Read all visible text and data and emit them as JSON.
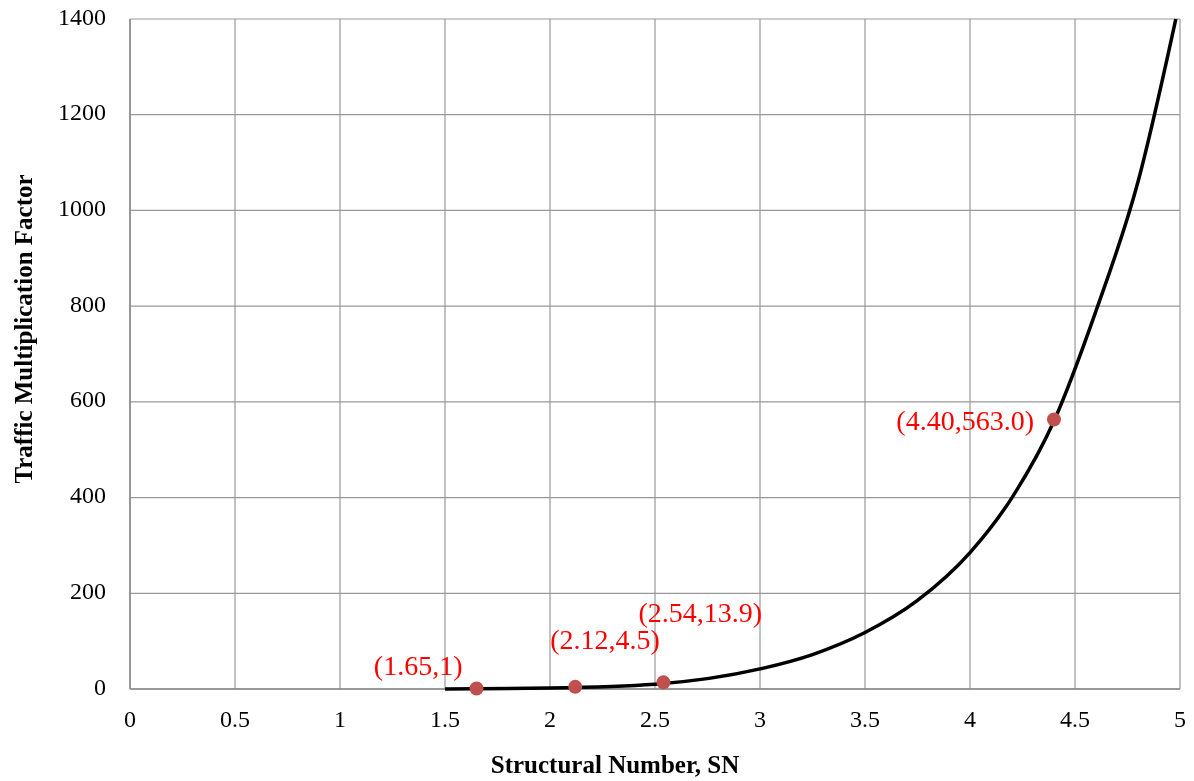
{
  "chart_data": {
    "type": "line",
    "xlabel": "Structural Number, SN",
    "ylabel": "Traffic Multiplication Factor",
    "xlim": [
      0,
      5
    ],
    "xticks": [
      0,
      0.5,
      1,
      1.5,
      2,
      2.5,
      3,
      3.5,
      4,
      4.5,
      5
    ],
    "ylim": [
      0,
      1400
    ],
    "yticks": [
      0,
      200,
      400,
      600,
      800,
      1000,
      1200,
      1400
    ],
    "grid": true,
    "series": [
      {
        "color": "#000000",
        "marker": "none",
        "line_style": "solid",
        "x": [
          1.5,
          2,
          2.5,
          3,
          3.25,
          3.5,
          3.75,
          4,
          4.2,
          4.4,
          4.6,
          4.8,
          4.98
        ],
        "values": [
          0,
          2,
          10,
          42,
          72,
          118,
          185,
          285,
          400,
          560,
          790,
          1060,
          1400
        ]
      },
      {
        "type": "scatter",
        "color": "#c0504d",
        "marker": "circle",
        "x": [
          1.65,
          2.12,
          2.54,
          4.4
        ],
        "values": [
          1,
          4.5,
          13.9,
          563
        ],
        "value_labels": [
          "(1.65,1)",
          "(2.12,4.5)",
          "(2.54,13.9)",
          "(4.40,563.0)"
        ]
      }
    ]
  }
}
